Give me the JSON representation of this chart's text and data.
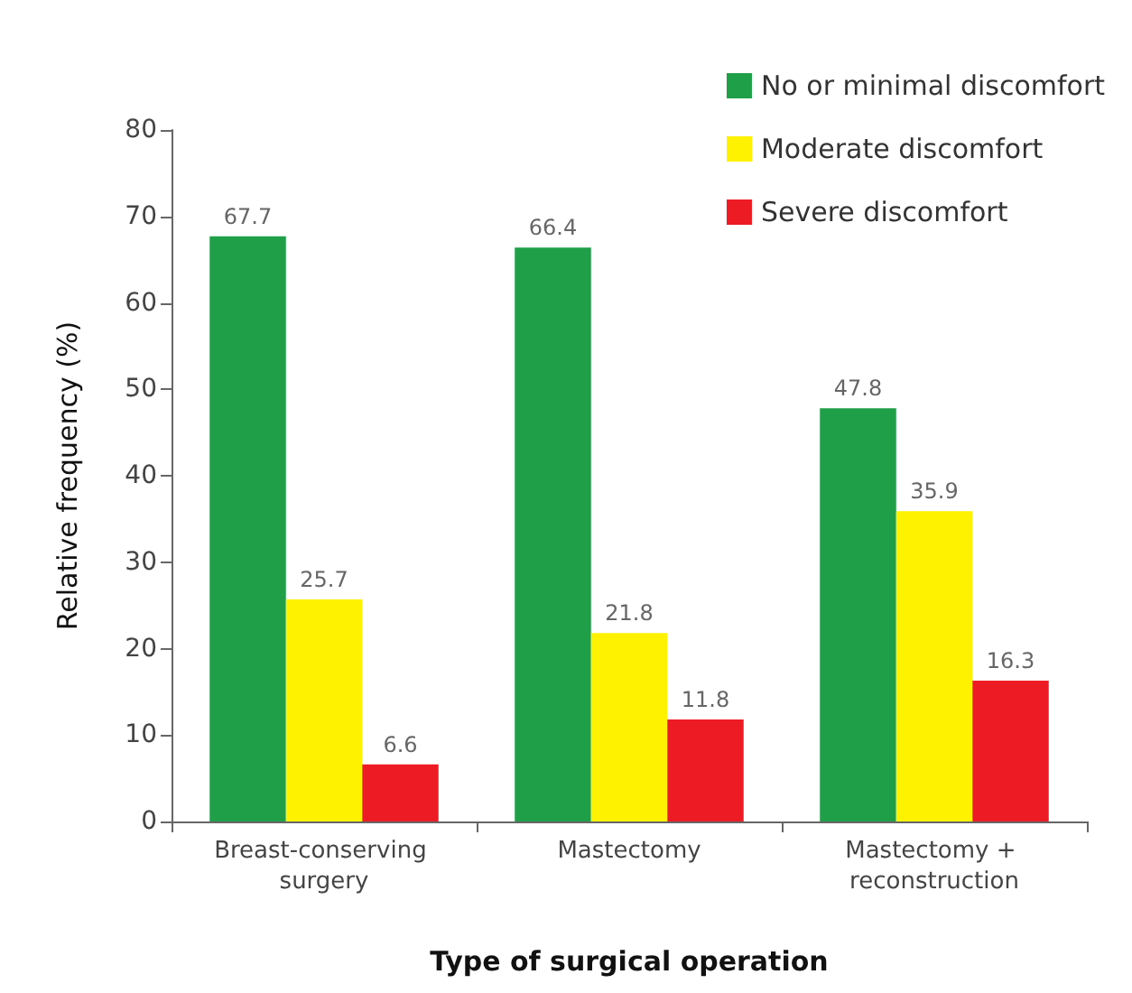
{
  "chart_data": {
    "type": "bar",
    "xlabel": "Type of surgical operation",
    "ylabel": "Relative frequency (%)",
    "categories": [
      "Breast-conserving surgery",
      "Mastectomy",
      "Mastectomy + reconstruction"
    ],
    "series": [
      {
        "name": "No or minimal discomfort",
        "color": "#1f9f48",
        "values": [
          67.7,
          66.4,
          47.8
        ]
      },
      {
        "name": "Moderate discomfort",
        "color": "#fff200",
        "values": [
          25.7,
          21.8,
          35.9
        ]
      },
      {
        "name": "Severe discomfort",
        "color": "#ed1c24",
        "values": [
          6.6,
          11.8,
          16.3
        ]
      }
    ],
    "ylim": [
      0,
      80
    ],
    "yticks": [
      0,
      10,
      20,
      30,
      40,
      50,
      60,
      70,
      80
    ],
    "grid": false,
    "legend": "top right",
    "data_labels": true
  }
}
